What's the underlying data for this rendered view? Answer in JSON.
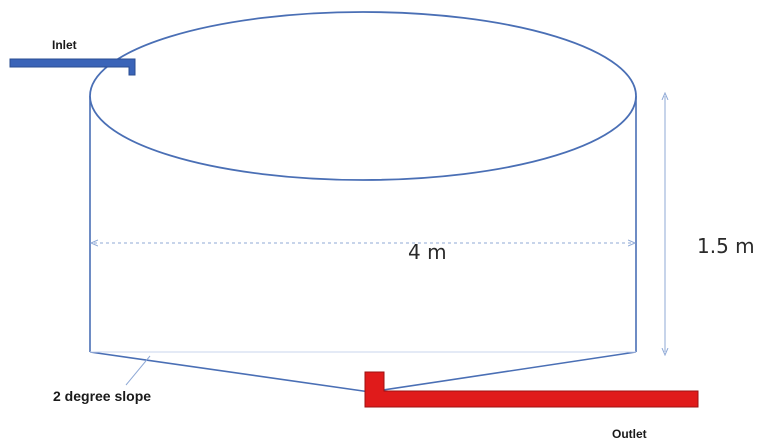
{
  "labels": {
    "inlet": "Inlet",
    "outlet": "Outlet",
    "diameter": "4 m",
    "height": "1.5 m",
    "slope": "2 degree slope"
  },
  "colors": {
    "tank_outline": "#4a6fb5",
    "dimension_line": "#8fa9d6",
    "inlet_pipe": "#3a64b8",
    "outlet_pipe": "#e01b1b",
    "outlet_pipe_edge": "#9e1010"
  }
}
